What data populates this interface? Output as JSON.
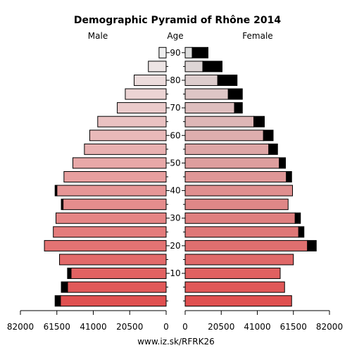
{
  "chart_data": {
    "type": "bar",
    "title": "Demographic Pyramid of Rhône 2014",
    "left_label": "Male",
    "center_label": "Age",
    "right_label": "Female",
    "footer": "www.iz.sk/RFRK26",
    "x_tick_labels_left": [
      "82000",
      "61500",
      "41000",
      "20500",
      "0"
    ],
    "x_tick_values_left": [
      82000,
      61500,
      41000,
      20500,
      0
    ],
    "x_tick_labels_right": [
      "0",
      "20500",
      "41000",
      "61500",
      "82000"
    ],
    "x_tick_values_right": [
      0,
      20500,
      41000,
      61500,
      82000
    ],
    "y_tick_labels": [
      "10",
      "20",
      "30",
      "40",
      "50",
      "60",
      "70",
      "80",
      "90"
    ],
    "y_tick_groups": [
      2,
      4,
      6,
      8,
      10,
      12,
      14,
      16,
      18
    ],
    "xlim": [
      0,
      82000
    ],
    "age_groups": [
      "0-4",
      "5-9",
      "10-14",
      "15-19",
      "20-24",
      "25-29",
      "30-34",
      "35-39",
      "40-44",
      "45-49",
      "50-54",
      "55-59",
      "60-64",
      "65-69",
      "70-74",
      "75-79",
      "80-84",
      "85-89",
      "90+"
    ],
    "male": {
      "base": [
        59500,
        55500,
        53500,
        60000,
        68500,
        63500,
        62000,
        58000,
        61500,
        57500,
        52500,
        46000,
        43000,
        38500,
        27500,
        23000,
        18000,
        10000,
        4000
      ],
      "excess": [
        3000,
        3500,
        2000,
        0,
        0,
        0,
        0,
        1000,
        1000,
        0,
        0,
        0,
        0,
        0,
        0,
        0,
        0,
        0,
        0
      ]
    },
    "female": {
      "base": [
        60500,
        56500,
        54000,
        61500,
        69500,
        64500,
        62500,
        58500,
        61000,
        57500,
        53500,
        47500,
        44500,
        39000,
        28000,
        24500,
        18500,
        10000,
        4000
      ],
      "excess": [
        0,
        0,
        0,
        0,
        5000,
        3000,
        3000,
        0,
        0,
        3000,
        3500,
        5000,
        5500,
        6000,
        4500,
        8000,
        11000,
        11000,
        9000
      ]
    },
    "colors": {
      "male_bottom": "#e05050",
      "male_top": "#eeeeee",
      "female_bottom": "#e05050",
      "female_top": "#dddddd",
      "excess": "#000000",
      "stroke": "#000000"
    }
  }
}
